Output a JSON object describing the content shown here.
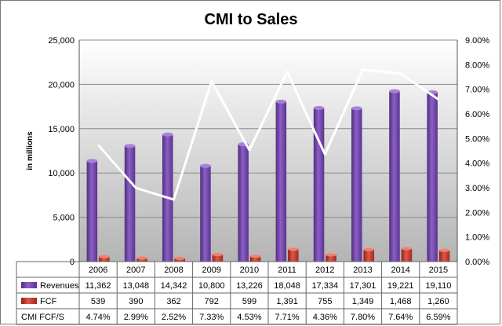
{
  "chart_data": {
    "type": "bar",
    "title": "CMI to Sales",
    "ylabel": "in millions",
    "categories": [
      "2006",
      "2007",
      "2008",
      "2009",
      "2010",
      "2011",
      "2012",
      "2013",
      "2014",
      "2015"
    ],
    "ylim": [
      0,
      25000
    ],
    "y_ticks": [
      "0",
      "5,000",
      "10,000",
      "15,000",
      "20,000",
      "25,000"
    ],
    "y2lim": [
      0,
      0.09
    ],
    "y2_ticks": [
      "0.00%",
      "1.00%",
      "2.00%",
      "3.00%",
      "4.00%",
      "5.00%",
      "6.00%",
      "7.00%",
      "8.00%",
      "9.00%"
    ],
    "grid": true,
    "legend": "data-table",
    "series": [
      {
        "name": "Revenues",
        "kind": "bar",
        "axis": "left",
        "color": "#7b4fb0",
        "values": [
          11362,
          13048,
          14342,
          10800,
          13226,
          18048,
          17334,
          17301,
          19221,
          19110
        ],
        "labels": [
          "11,362",
          "13,048",
          "14,342",
          "10,800",
          "13,226",
          "18,048",
          "17,334",
          "17,301",
          "19,221",
          "19,110"
        ]
      },
      {
        "name": "FCF",
        "kind": "bar",
        "axis": "left",
        "color": "#c0362c",
        "values": [
          539,
          390,
          362,
          792,
          599,
          1391,
          755,
          1349,
          1468,
          1260
        ],
        "labels": [
          "539",
          "390",
          "362",
          "792",
          "599",
          "1,391",
          "755",
          "1,349",
          "1,468",
          "1,260"
        ]
      },
      {
        "name": "CMI FCF/S",
        "kind": "line",
        "axis": "right",
        "color": "#ffffff",
        "values": [
          0.0474,
          0.0299,
          0.0252,
          0.0733,
          0.0453,
          0.0771,
          0.0436,
          0.078,
          0.0764,
          0.0659
        ],
        "labels": [
          "4.74%",
          "2.99%",
          "2.52%",
          "7.33%",
          "4.53%",
          "7.71%",
          "4.36%",
          "7.80%",
          "7.64%",
          "6.59%"
        ]
      }
    ]
  }
}
